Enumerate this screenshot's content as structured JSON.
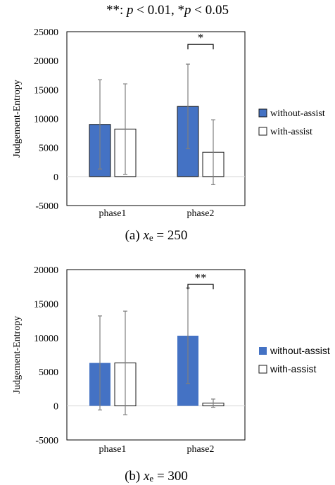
{
  "figure": {
    "note_parts": [
      "**: ",
      "p",
      " < 0.01, *",
      "p",
      " < 0.05"
    ]
  },
  "colors": {
    "without_assist": "#4472C4",
    "with_assist": "#FFFFFF",
    "bar_edge": "#1a1a1a",
    "error_bar": "#7f7f7f",
    "zero_line": "#d9d9d9",
    "frame": "#000000"
  },
  "chart_data": [
    {
      "type": "bar",
      "caption_parts": [
        "(a) ",
        "x",
        "e",
        " = 250"
      ],
      "categories": [
        "phase1",
        "phase2"
      ],
      "ylabel": "Judgement-Entropy",
      "xlabel": "",
      "ylim": [
        -5000,
        25000
      ],
      "yticks": [
        "25000",
        "20000",
        "15000",
        "10000",
        "5000",
        "0",
        "-5000"
      ],
      "ytick_values": [
        25000,
        20000,
        15000,
        10000,
        5000,
        0,
        -5000
      ],
      "bar_edges": true,
      "legend": "right",
      "series": [
        {
          "name": "without-assist",
          "values": [
            9000,
            12100
          ],
          "errors": [
            7700,
            7300
          ]
        },
        {
          "name": "with-assist",
          "values": [
            8200,
            4200
          ],
          "errors": [
            7800,
            5600
          ]
        }
      ],
      "significance": [
        {
          "category": "phase2",
          "label": "*"
        }
      ]
    },
    {
      "type": "bar",
      "caption_parts": [
        "(b) ",
        "x",
        "e",
        " = 300"
      ],
      "categories": [
        "phase1",
        "phase2"
      ],
      "ylabel": "Judgement-Entropy",
      "xlabel": "",
      "ylim": [
        -5000,
        20000
      ],
      "yticks": [
        "20000",
        "15000",
        "10000",
        "5000",
        "0",
        "-5000"
      ],
      "ytick_values": [
        20000,
        15000,
        10000,
        5000,
        0,
        -5000
      ],
      "bar_edges": false,
      "legend": "right",
      "series": [
        {
          "name": "without-assist",
          "values": [
            6300,
            10300
          ],
          "errors": [
            6900,
            7000
          ]
        },
        {
          "name": "with-assist",
          "values": [
            6300,
            400
          ],
          "errors": [
            7600,
            600
          ]
        }
      ],
      "significance": [
        {
          "category": "phase2",
          "label": "**"
        }
      ]
    }
  ]
}
